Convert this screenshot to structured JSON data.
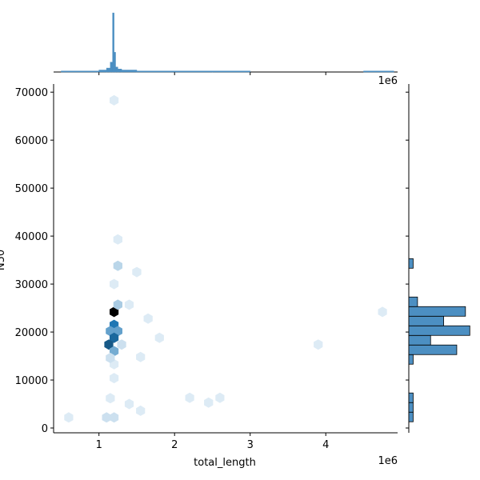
{
  "chart_data": [
    {
      "type": "hexbin",
      "xlabel": "total_length",
      "ylabel": "N50",
      "x_offset_label": "1e6",
      "x": [
        1.2,
        1.2,
        1.15,
        1.25,
        1.2,
        1.13,
        1.2,
        1.25,
        1.25,
        1.4,
        1.2,
        1.25,
        1.2,
        1.5,
        1.65,
        1.55,
        1.8,
        2.2,
        2.6,
        2.45,
        3.9,
        4.75,
        0.6,
        1.1,
        1.2,
        1.55,
        1.4,
        1.15,
        1.2,
        1.2,
        1.15,
        1.3
      ],
      "y": [
        24200,
        21500,
        20200,
        20200,
        18800,
        17400,
        16000,
        33800,
        25700,
        25700,
        68300,
        39300,
        30000,
        32500,
        22800,
        14800,
        18800,
        6300,
        6300,
        5300,
        17400,
        24200,
        2200,
        2200,
        2200,
        3600,
        5000,
        6200,
        10400,
        13300,
        14600,
        17400
      ],
      "counts": [
        20,
        12,
        8,
        8,
        13,
        14,
        7,
        3,
        4,
        1,
        1,
        1,
        1,
        1,
        1,
        1,
        1,
        1,
        1,
        1,
        1,
        1,
        1,
        2,
        2,
        1,
        1,
        1,
        1,
        1,
        2,
        2
      ],
      "xlim": [
        0.4,
        4.95
      ],
      "ylim": [
        -1000,
        71700
      ],
      "xticks": [
        1,
        2,
        3,
        4
      ],
      "yticks": [
        0,
        10000,
        20000,
        30000,
        40000,
        50000,
        60000,
        70000
      ],
      "color": "#1f77b4"
    },
    {
      "type": "histogram",
      "orientation": "vertical",
      "x_offset_label": "1e6",
      "bins": [
        0.5,
        1.0,
        1.1,
        1.15,
        1.18,
        1.2,
        1.22,
        1.25,
        1.3,
        1.5,
        2.0,
        2.5,
        3.0,
        3.5,
        4.0,
        4.5,
        4.9
      ],
      "counts": [
        1,
        2,
        4,
        10,
        60,
        20,
        5,
        3,
        2,
        1,
        1,
        1,
        0,
        0,
        0,
        1
      ],
      "xlim": [
        0.4,
        4.95
      ],
      "ylim": [
        0,
        65
      ],
      "xticks": [
        1,
        2,
        3,
        4
      ],
      "color": "#4c8fc2"
    },
    {
      "type": "histogram",
      "orientation": "horizontal",
      "bins": [
        1300,
        3300,
        5300,
        7300,
        9300,
        11300,
        13300,
        15300,
        17300,
        19300,
        21300,
        23300,
        25300,
        27300,
        29300,
        31300,
        33300,
        35300
      ],
      "counts": [
        1,
        1,
        1,
        0,
        0,
        0,
        1,
        11,
        5,
        14,
        8,
        13,
        2,
        0,
        0,
        0,
        1
      ],
      "ylim": [
        -1000,
        71700
      ],
      "xlim": [
        0,
        14.5
      ],
      "yticks": [
        0,
        10000,
        20000,
        30000,
        40000,
        50000,
        60000,
        70000
      ],
      "color": "#4c8fc2"
    }
  ]
}
